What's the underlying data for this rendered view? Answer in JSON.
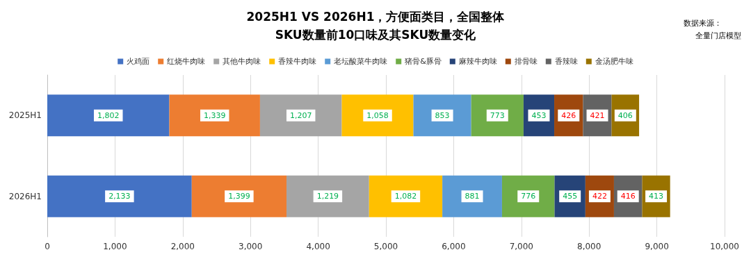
{
  "chart_data": {
    "type": "bar",
    "orientation": "horizontal",
    "stacked": true,
    "title": "2025H1 VS 2026H1，方便面类目，全国整体\nSKU数量前10口味及其SKU数量变化",
    "annotations": [
      "数据来源：",
      "全量门店模型"
    ],
    "categories": [
      "2025H1",
      "2026H1"
    ],
    "series": [
      {
        "name": "火鸡面",
        "color": "#4472c4",
        "values": [
          1802,
          2133
        ],
        "value_labels": [
          "1,802",
          "2,133"
        ]
      },
      {
        "name": "红烧牛肉味",
        "color": "#ed7d31",
        "values": [
          1339,
          1399
        ],
        "value_labels": [
          "1,339",
          "1,399"
        ]
      },
      {
        "name": "其他牛肉味",
        "color": "#a5a5a5",
        "values": [
          1207,
          1219
        ],
        "value_labels": [
          "1,207",
          "1,219"
        ]
      },
      {
        "name": "香辣牛肉味",
        "color": "#ffc000",
        "values": [
          1058,
          1082
        ],
        "value_labels": [
          "1,058",
          "1,082"
        ]
      },
      {
        "name": "老坛酸菜牛肉味",
        "color": "#5b9bd5",
        "values": [
          853,
          881
        ],
        "value_labels": [
          "853",
          "881"
        ]
      },
      {
        "name": "猪骨&豚骨",
        "color": "#70ad47",
        "values": [
          773,
          776
        ],
        "value_labels": [
          "773",
          "776"
        ]
      },
      {
        "name": "麻辣牛肉味",
        "color": "#264478",
        "values": [
          453,
          455
        ],
        "value_labels": [
          "453",
          "455"
        ]
      },
      {
        "name": "排骨味",
        "color": "#9e480e",
        "values": [
          426,
          422
        ],
        "value_labels": [
          "426",
          "422"
        ]
      },
      {
        "name": "香辣味",
        "color": "#636363",
        "values": [
          421,
          416
        ],
        "value_labels": [
          "421",
          "416"
        ]
      },
      {
        "name": "金汤肥牛味",
        "color": "#997300",
        "values": [
          406,
          413
        ],
        "value_labels": [
          "406",
          "413"
        ]
      }
    ],
    "xlim": [
      0,
      10000
    ],
    "xticks": [
      0,
      {
        "value": 1000,
        "label": "1,000"
      },
      {
        "value": 2000,
        "label": "2,000"
      },
      {
        "value": 3000,
        "label": "3,000"
      },
      {
        "value": 4000,
        "label": "4,000"
      },
      {
        "value": 5000,
        "label": "5,000"
      },
      {
        "value": 6000,
        "label": "6,000"
      },
      {
        "value": 7000,
        "label": "7,000"
      },
      {
        "value": 8000,
        "label": "8,000"
      },
      {
        "value": 9000,
        "label": "9,000"
      },
      {
        "value": 10000,
        "label": "10,000"
      }
    ],
    "grid": "x",
    "legend": "top"
  }
}
